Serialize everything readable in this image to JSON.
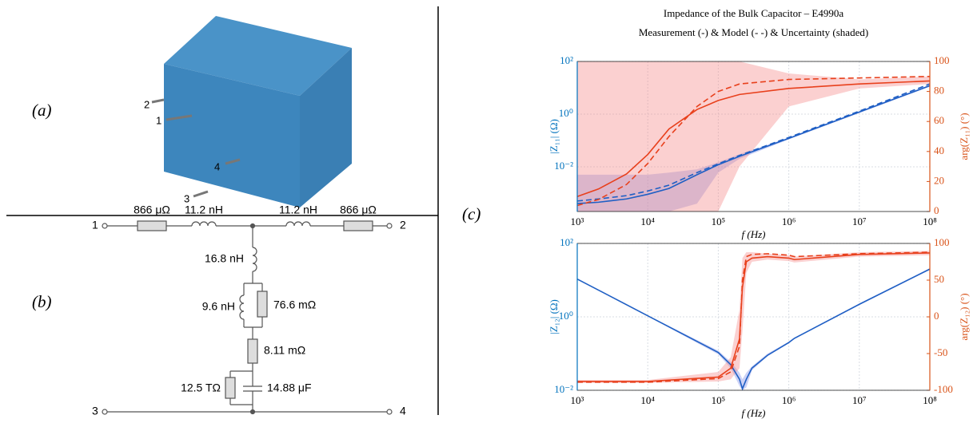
{
  "panels": {
    "a": "(a)",
    "b": "(b)",
    "c": "(c)"
  },
  "photo": {
    "pins": [
      "2",
      "1",
      "4",
      "3"
    ]
  },
  "circuit": {
    "terminals": [
      "1",
      "2",
      "3",
      "4"
    ],
    "components": [
      "866 μΩ",
      "11.2 nH",
      "11.2 nH",
      "866 μΩ",
      "16.8 nH",
      "9.6 nH",
      "76.6 mΩ",
      "8.11 mΩ",
      "12.5 TΩ",
      "14.88 μF"
    ]
  },
  "chart_data": [
    {
      "type": "line",
      "title": "Impedance of the Bulk Capacitor – E4990a",
      "subtitle": "Measurement (-) & Model (- -) & Uncertainty (shaded)",
      "xlabel": "f (Hz)",
      "ylabel": "|Z₁₁| (Ω)",
      "y2label": "arg(Z₁₁) (°)",
      "xscale": "log",
      "yscale": "log",
      "grid": true,
      "ycolor": "#0072BD",
      "y2color": "#D95319",
      "xlim": [
        1000,
        100000000
      ],
      "xticks": [
        {
          "value": 1000,
          "label": "10³"
        },
        {
          "value": 10000,
          "label": "10⁴"
        },
        {
          "value": 100000,
          "label": "10⁵"
        },
        {
          "value": 1000000,
          "label": "10⁶"
        },
        {
          "value": 10000000,
          "label": "10⁷"
        },
        {
          "value": 100000000,
          "label": "10⁸"
        }
      ],
      "ylim": [
        0.0002,
        100
      ],
      "yticks": [
        {
          "value": 0.01,
          "label": "10⁻²"
        },
        {
          "value": 1,
          "label": "10⁰"
        },
        {
          "value": 100,
          "label": "10²"
        }
      ],
      "y2lim": [
        0,
        100
      ],
      "y2ticks": [
        0,
        20,
        40,
        60,
        80,
        100
      ],
      "x": [
        1000,
        2000,
        5000,
        10000,
        20000,
        50000,
        100000,
        200000,
        1000000,
        10000000,
        100000000
      ],
      "bands": [
        {
          "color": "#7f8fe8",
          "axis": "y",
          "upper": [
            0.005,
            0.005,
            0.005,
            0.005,
            0.006,
            0.008,
            0.015,
            0.03,
            0.13,
            1.3,
            13
          ],
          "lower": [
            0.0002,
            0.0002,
            0.0002,
            0.0002,
            0.0002,
            0.0004,
            0.006,
            0.02,
            0.11,
            1.1,
            11
          ]
        },
        {
          "color": "#f48a8a",
          "axis": "y2",
          "upper": [
            100,
            100,
            100,
            100,
            100,
            100,
            100,
            100,
            92,
            88,
            90
          ],
          "lower": [
            0,
            0,
            0,
            0,
            0,
            0,
            0,
            30,
            70,
            82,
            85
          ]
        }
      ],
      "series": [
        {
          "color": "#1f5fc4",
          "linestyle": "solid",
          "values": [
            0.0004,
            0.00045,
            0.0006,
            0.0009,
            0.0015,
            0.005,
            0.012,
            0.025,
            0.12,
            1.2,
            12
          ]
        },
        {
          "color": "#1f5fc4",
          "linestyle": "dashed",
          "values": [
            0.0005,
            0.0006,
            0.0008,
            0.0012,
            0.002,
            0.006,
            0.013,
            0.027,
            0.13,
            1.3,
            14
          ]
        },
        {
          "color": "#e8401c",
          "linestyle": "solid",
          "axis": "y2",
          "values": [
            10,
            15,
            25,
            38,
            55,
            68,
            74,
            78,
            82,
            85,
            87
          ]
        },
        {
          "color": "#e8401c",
          "linestyle": "dashed",
          "axis": "y2",
          "values": [
            4,
            8,
            18,
            32,
            50,
            70,
            80,
            85,
            88,
            89,
            90
          ]
        }
      ]
    },
    {
      "type": "line",
      "xlabel": "f (Hz)",
      "ylabel": "|Z₁₂| (Ω)",
      "y2label": "arg(Z₁₂) (°)",
      "xscale": "log",
      "yscale": "log",
      "grid": true,
      "ycolor": "#0072BD",
      "y2color": "#D95319",
      "xlim": [
        1000,
        100000000
      ],
      "xticks": [
        {
          "value": 1000,
          "label": "10³"
        },
        {
          "value": 10000,
          "label": "10⁴"
        },
        {
          "value": 100000,
          "label": "10⁵"
        },
        {
          "value": 1000000,
          "label": "10⁶"
        },
        {
          "value": 10000000,
          "label": "10⁷"
        },
        {
          "value": 100000000,
          "label": "10⁸"
        }
      ],
      "ylim": [
        0.01,
        100
      ],
      "yticks": [
        {
          "value": 0.01,
          "label": "10⁻²"
        },
        {
          "value": 1,
          "label": "10⁰"
        },
        {
          "value": 100,
          "label": "10²"
        }
      ],
      "y2lim": [
        -100,
        100
      ],
      "y2ticks": [
        -100,
        -50,
        0,
        50,
        100
      ],
      "x": [
        1000,
        10000,
        100000,
        150000,
        200000,
        220000,
        250000,
        300000,
        500000,
        1000000,
        1200000,
        10000000,
        100000000
      ],
      "bands": [
        {
          "color": "#7f8fe8",
          "axis": "y",
          "upper": [
            11,
            1.1,
            0.12,
            0.06,
            0.03,
            0.02,
            0.03,
            0.045,
            0.1,
            0.21,
            0.27,
            2.3,
            21
          ],
          "lower": [
            10.4,
            1.04,
            0.095,
            0.04,
            0.013,
            0.01,
            0.012,
            0.035,
            0.085,
            0.19,
            0.25,
            2.1,
            19
          ]
        },
        {
          "color": "#f48a8a",
          "axis": "y2",
          "upper": [
            -86,
            -86,
            -75,
            -55,
            10,
            80,
            88,
            88,
            86,
            84,
            82,
            88,
            90
          ],
          "lower": [
            -90,
            -90,
            -88,
            -85,
            -70,
            -20,
            60,
            75,
            78,
            76,
            74,
            82,
            84
          ]
        }
      ],
      "series": [
        {
          "color": "#1f5fc4",
          "linestyle": "solid",
          "values": [
            10.7,
            1.07,
            0.107,
            0.05,
            0.02,
            0.011,
            0.02,
            0.04,
            0.09,
            0.2,
            0.26,
            2.2,
            20
          ]
        },
        {
          "color": "#e8401c",
          "linestyle": "solid",
          "axis": "y2",
          "values": [
            -88,
            -88,
            -82,
            -70,
            -30,
            40,
            75,
            80,
            82,
            80,
            78,
            85,
            87
          ]
        },
        {
          "color": "#e8401c",
          "linestyle": "dashed",
          "axis": "y2",
          "values": [
            -89,
            -89,
            -84,
            -75,
            -40,
            50,
            82,
            85,
            86,
            84,
            82,
            86,
            88
          ]
        }
      ]
    }
  ]
}
